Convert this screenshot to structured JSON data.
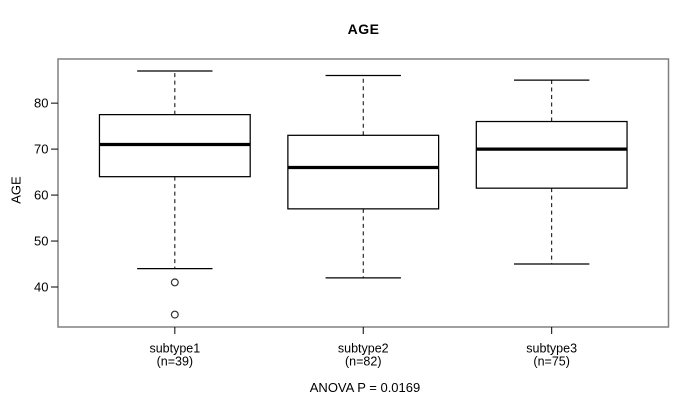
{
  "figure": {
    "title": "AGE",
    "ylabel": "AGE",
    "annotation": "ANOVA P = 0.0169"
  },
  "chart_data": {
    "type": "boxplot",
    "title": "AGE",
    "xlabel": "",
    "ylabel": "AGE",
    "annotation": "ANOVA P = 0.0169",
    "y_ticks": [
      40,
      50,
      60,
      70,
      80
    ],
    "ylim": [
      31.3,
      89.6
    ],
    "xlim": [
      0.38,
      3.62
    ],
    "grid": false,
    "groups": [
      {
        "label": "subtype1",
        "sublabel": "(n=39)",
        "position": 1,
        "whisker_low": 44,
        "q1": 64,
        "median": 71,
        "q3": 77.5,
        "whisker_high": 87,
        "outliers": [
          41,
          34
        ]
      },
      {
        "label": "subtype2",
        "sublabel": "(n=82)",
        "position": 2,
        "whisker_low": 42,
        "q1": 57,
        "median": 66,
        "q3": 73,
        "whisker_high": 86,
        "outliers": []
      },
      {
        "label": "subtype3",
        "sublabel": "(n=75)",
        "position": 3,
        "whisker_low": 45,
        "q1": 61.5,
        "median": 70,
        "q3": 76,
        "whisker_high": 85,
        "outliers": []
      }
    ],
    "colors": {
      "box_stroke": "#000000",
      "median": "#000000",
      "frame": "#808080",
      "outlier_stroke": "#303030",
      "background": "#ffffff"
    }
  }
}
